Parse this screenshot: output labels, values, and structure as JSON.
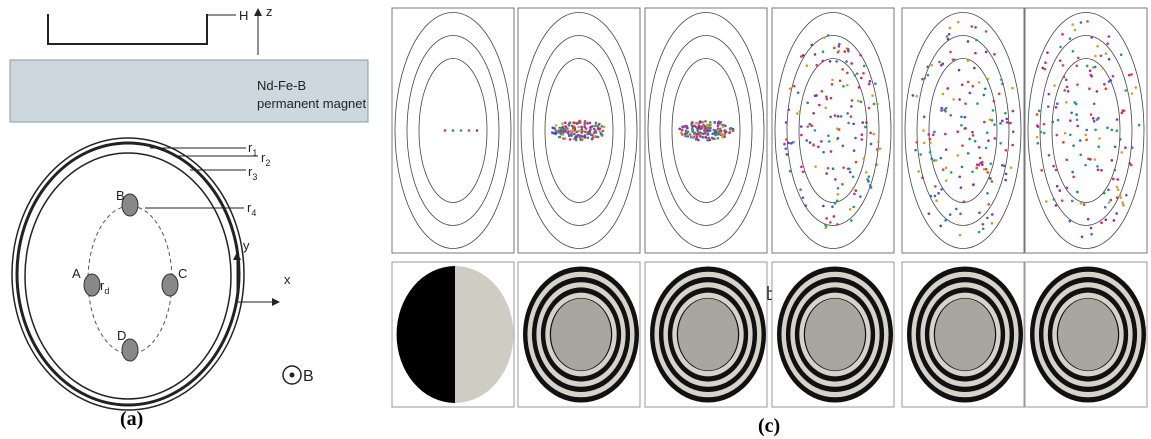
{
  "figure": {
    "panel_a": {
      "height_label": "H",
      "z_axis": "z",
      "magnet_line1": "Nd-Fe-B",
      "magnet_line2": "permanent magnet",
      "radii": [
        {
          "main": "r",
          "sub": "1"
        },
        {
          "main": "r",
          "sub": "2"
        },
        {
          "main": "r",
          "sub": "3"
        },
        {
          "main": "r",
          "sub": "4"
        }
      ],
      "r_d": {
        "main": "r",
        "sub": "d"
      },
      "points": [
        "A",
        "B",
        "C",
        "D"
      ],
      "y_axis": "y",
      "x_axis": "x",
      "field": "B",
      "caption": "(a)"
    },
    "panel_b": {
      "caption": "(b)"
    },
    "panel_c": {
      "caption": "(c)"
    }
  }
}
